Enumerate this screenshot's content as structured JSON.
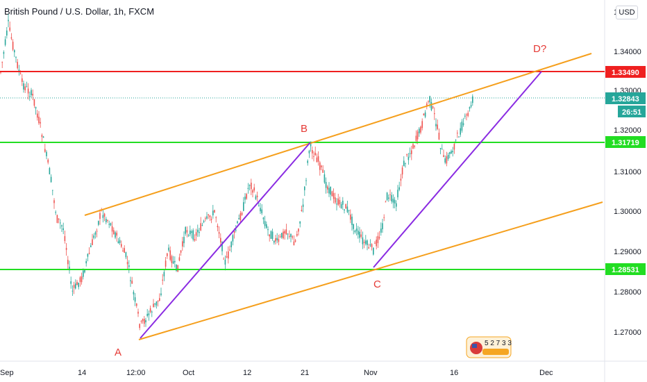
{
  "chart": {
    "title": "British Pound / U.S. Dollar, 1h, FXCM",
    "currency_button": "USD"
  },
  "price_axis": {
    "ticks": [
      "1.34000",
      "1.33000",
      "1.32000",
      "1.31000",
      "1.30000",
      "1.29000",
      "1.28000",
      "1.27000"
    ],
    "top_partial": "1"
  },
  "time_axis": {
    "ticks": [
      "Sep",
      "14",
      "12:00",
      "Oct",
      "12",
      "21",
      "Nov",
      "16",
      "Dec"
    ]
  },
  "levels": {
    "resistance": {
      "label": "1.33490",
      "color": "#ef2020"
    },
    "upper_support": {
      "label": "1.31719",
      "color": "#22dd22"
    },
    "lower_support": {
      "label": "1.28531",
      "color": "#22dd22"
    },
    "current_price": {
      "label": "1.32843",
      "countdown": "26:51",
      "color": "#26a69a"
    }
  },
  "wave_labels": {
    "a": "A",
    "b": "B",
    "c": "C",
    "d": "D?"
  },
  "colors": {
    "channel": "#f59f1c",
    "wave": "#8a2be2",
    "up_candle": "#26a69a",
    "down_candle": "#ef5350",
    "label": "#e53935"
  },
  "badge": {
    "text": "5 2 7 3 3"
  }
}
